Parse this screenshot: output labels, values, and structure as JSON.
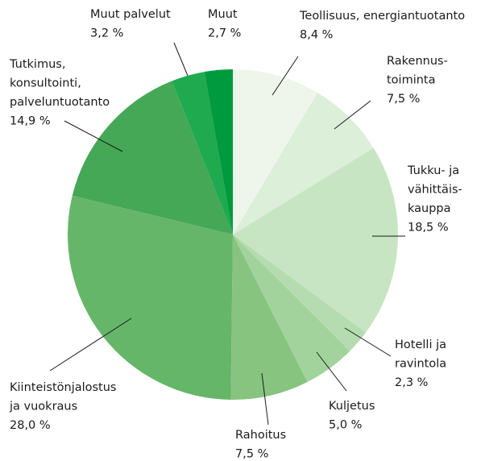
{
  "chart_data": {
    "type": "pie",
    "categories": [
      [
        "Teollisuus, energiantuotanto"
      ],
      [
        "Rakennus-",
        "toiminta"
      ],
      [
        "Tukku- ja",
        "vähittäis-",
        "kauppa"
      ],
      [
        "Hotelli ja",
        "ravintola"
      ],
      [
        "Kuljetus"
      ],
      [
        "Rahoitus"
      ],
      [
        "Kiinteistönjalostus",
        "ja vuokraus"
      ],
      [
        "Tutkimus,",
        "konsultointi,",
        "palveluntuotanto"
      ],
      [
        "Muut palvelut"
      ],
      [
        "Muut"
      ]
    ],
    "values": [
      8.4,
      7.5,
      18.5,
      2.3,
      5.0,
      7.5,
      28.0,
      14.9,
      3.2,
      2.7
    ],
    "value_labels": [
      "8,4 %",
      "7,5 %",
      "18,5 %",
      "2,3 %",
      "5,0 %",
      "7,5 %",
      "28,0 %",
      "14,9 %",
      "3,2 %",
      "2,7 %"
    ],
    "colors": [
      "#eef6ec",
      "#dcefd9",
      "#c8e5c3",
      "#b5dcb0",
      "#a3d39d",
      "#86c47f",
      "#66b66a",
      "#45a857",
      "#1faa4f",
      "#009a3e"
    ]
  }
}
